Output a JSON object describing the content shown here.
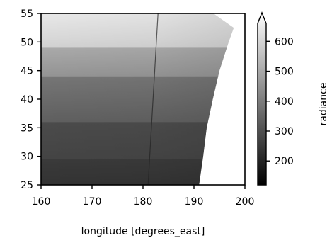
{
  "chart_data": {
    "type": "heatmap",
    "title": "",
    "xlabel": "longitude [degrees_east]",
    "ylabel": "",
    "xlim": [
      160,
      200
    ],
    "ylim": [
      25,
      55
    ],
    "x_ticks": [
      "160",
      "170",
      "180",
      "190",
      "200"
    ],
    "y_ticks": [
      "25",
      "30",
      "35",
      "40",
      "45",
      "50",
      "55"
    ],
    "colormap": "greys_r",
    "colorbar": {
      "label": "radiance",
      "ticks": [
        "200",
        "300",
        "400",
        "500",
        "600"
      ],
      "range": [
        120,
        660
      ],
      "extend": "max"
    },
    "data_extent": {
      "west_lon": 160,
      "north_lat": 55,
      "east_edge": [
        {
          "lat": 25,
          "lon": 191
        },
        {
          "lat": 30,
          "lon": 191.8
        },
        {
          "lat": 35,
          "lon": 192.5
        },
        {
          "lat": 40,
          "lon": 193.7
        },
        {
          "lat": 45,
          "lon": 195
        },
        {
          "lat": 50,
          "lon": 196.8
        },
        {
          "lat": 52.5,
          "lon": 197.8
        }
      ]
    },
    "bands": [
      {
        "lat_min": 25,
        "lat_max": 29.5,
        "radiance": 215
      },
      {
        "lat_min": 29.5,
        "lat_max": 36,
        "radiance": 255
      },
      {
        "lat_min": 36,
        "lat_max": 44,
        "radiance": 330
      },
      {
        "lat_min": 44,
        "lat_max": 49,
        "radiance": 440
      },
      {
        "lat_min": 49,
        "lat_max": 55,
        "radiance": 590
      }
    ],
    "seam_lon": 181
  }
}
